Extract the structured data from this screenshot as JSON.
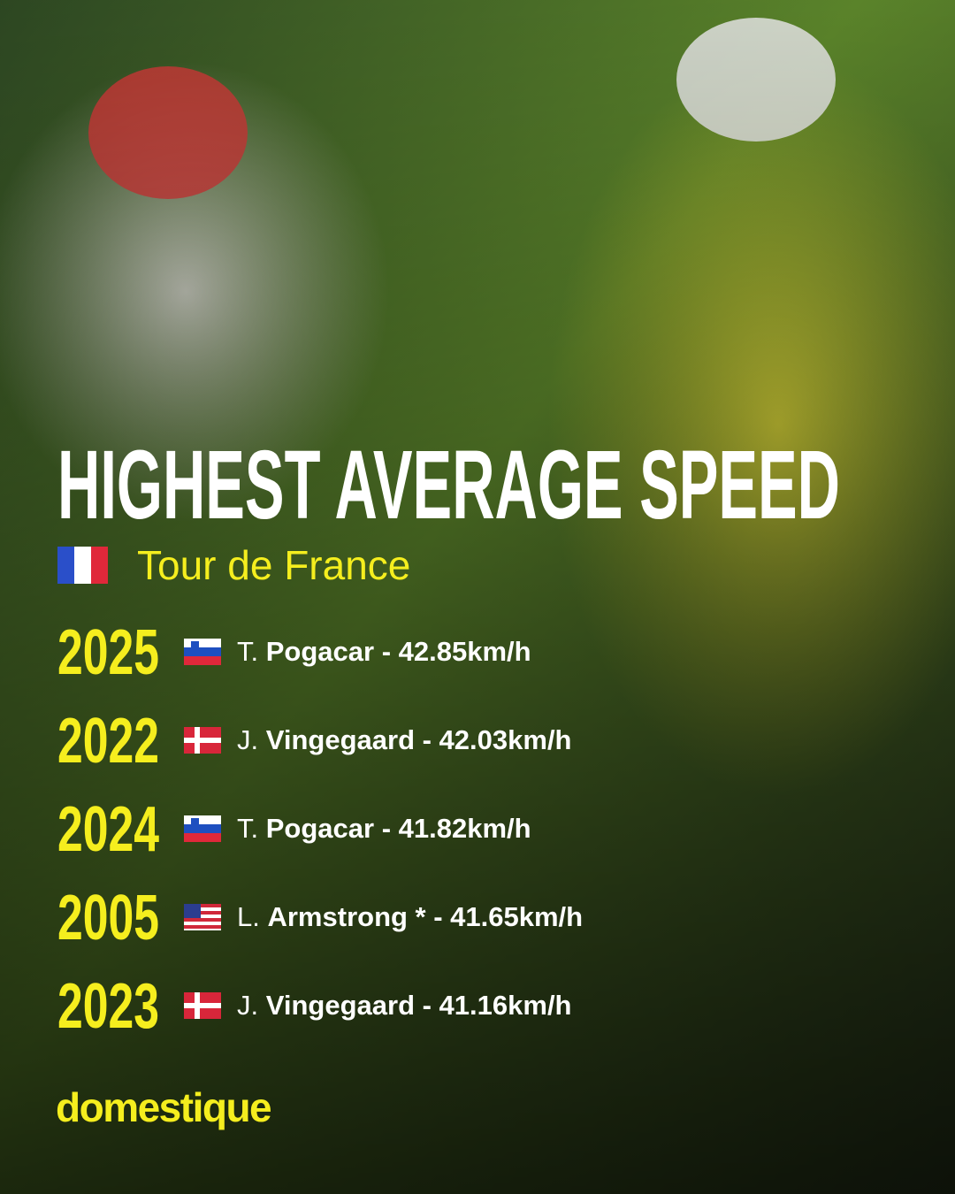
{
  "title": "HIGHEST AVERAGE SPEED",
  "subtitle": "Tour de France",
  "rows": [
    {
      "year": "2025",
      "initial": "T.",
      "rest": "Pogacar - 42.85km/h"
    },
    {
      "year": "2022",
      "initial": "J.",
      "rest": "Vingegaard - 42.03km/h"
    },
    {
      "year": "2024",
      "initial": "T.",
      "rest": "Pogacar - 41.82km/h"
    },
    {
      "year": "2005",
      "initial": "L.",
      "rest": "Armstrong * - 41.65km/h"
    },
    {
      "year": "2023",
      "initial": "J.",
      "rest": "Vingegaard - 41.16km/h"
    }
  ],
  "brand": "domestique"
}
